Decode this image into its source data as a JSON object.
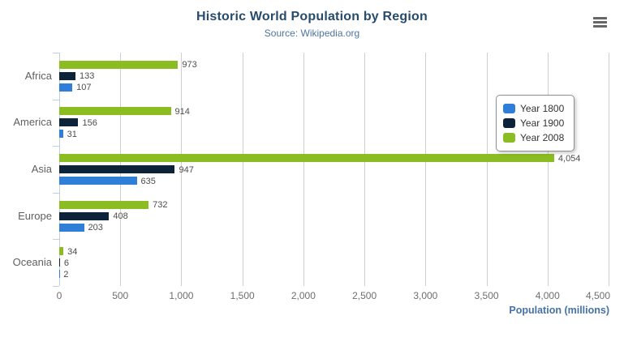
{
  "header": {
    "title": "Historic World Population by Region",
    "subtitle": "Source: Wikipedia.org"
  },
  "export_menu": {
    "icon": "hamburger-icon",
    "tooltip": "Chart context menu"
  },
  "chart_data": {
    "type": "bar",
    "orientation": "horizontal",
    "title": "Historic World Population by Region",
    "subtitle": "Source: Wikipedia.org",
    "categories": [
      "Africa",
      "America",
      "Asia",
      "Europe",
      "Oceania"
    ],
    "series": [
      {
        "name": "Year 1800",
        "color": "#2f7ed8",
        "values": [
          107,
          31,
          635,
          203,
          2
        ]
      },
      {
        "name": "Year 1900",
        "color": "#0d233a",
        "values": [
          133,
          156,
          947,
          408,
          6
        ]
      },
      {
        "name": "Year 2008",
        "color": "#8bbc21",
        "values": [
          973,
          914,
          4054,
          732,
          34
        ]
      }
    ],
    "bar_display_order_top_to_bottom": [
      "Year 2008",
      "Year 1900",
      "Year 1800"
    ],
    "data_labels": true,
    "value_axis": {
      "title": "Population (millions)",
      "min": 0,
      "max": 4500,
      "tick_interval": 500,
      "tick_labels": [
        "0",
        "500",
        "1,000",
        "1,500",
        "2,000",
        "2,500",
        "3,000",
        "3,500",
        "4,000",
        "4,500"
      ],
      "grid": true
    },
    "legend": {
      "position": "right",
      "items": [
        "Year 1800",
        "Year 1900",
        "Year 2008"
      ]
    }
  },
  "colors": {
    "title": "#274b6d",
    "subtitle": "#4d759e",
    "axis_title": "#4572a7",
    "grid_line": "#cfcfcf",
    "axis_line": "#C0D0E0",
    "category_label": "#606060",
    "tick_label": "#6e6e6e",
    "value_label": "#4d4d4d",
    "legend_border": "#909090",
    "menu_icon": "#666666"
  }
}
